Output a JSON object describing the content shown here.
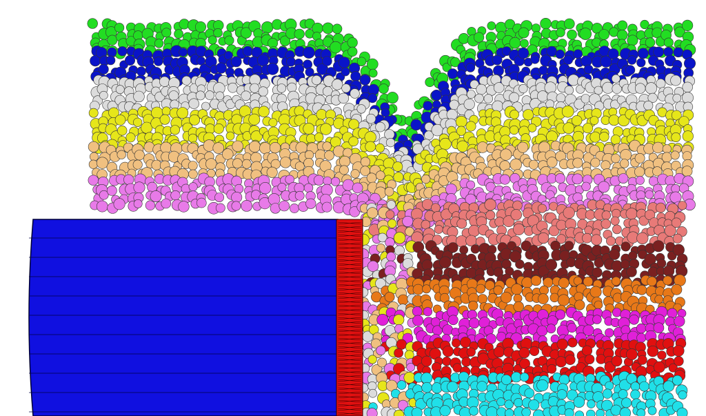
{
  "scene": {
    "background": "#ffffff",
    "particle_colors": {
      "green": "#22dd22",
      "blue": "#0a14c8",
      "white": "#dcdcdc",
      "yellow": "#e6e61a",
      "tan": "#f0c080",
      "pink": "#e87ae8",
      "salmon": "#e87a78",
      "maroon": "#7a2020",
      "orange": "#e87818",
      "magenta": "#e020d8",
      "red": "#e01010",
      "cyan": "#20e0e8"
    },
    "machine": {
      "body_color": "#1010e0",
      "cutter_color": "#e01010"
    }
  }
}
